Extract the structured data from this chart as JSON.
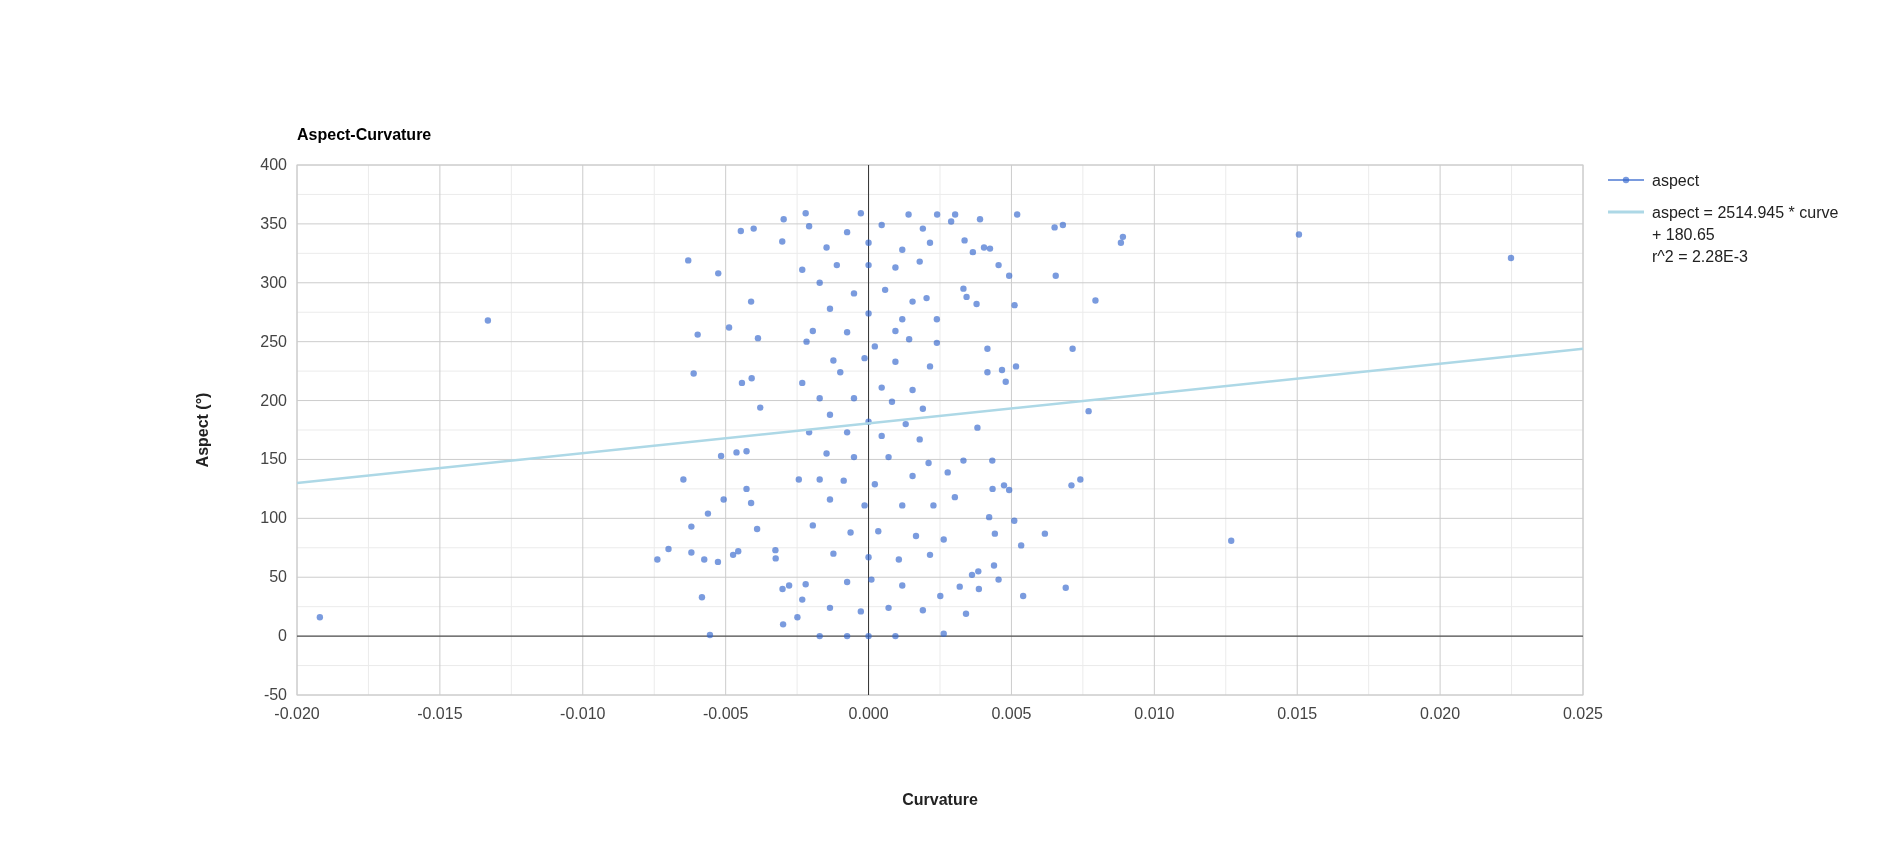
{
  "chart_data": {
    "type": "scatter",
    "title": "Aspect-Curvature",
    "xlabel": "Curvature",
    "ylabel": "Aspect (°)",
    "xlim": [
      -0.02,
      0.025
    ],
    "xticks": [
      {
        "value": -0.02,
        "label": "-0.020"
      },
      {
        "value": -0.015,
        "label": "-0.015"
      },
      {
        "value": -0.01,
        "label": "-0.010"
      },
      {
        "value": -0.005,
        "label": "-0.005"
      },
      {
        "value": 0,
        "label": "0.000"
      },
      {
        "value": 0.005,
        "label": "0.005"
      },
      {
        "value": 0.01,
        "label": "0.010"
      },
      {
        "value": 0.015,
        "label": "0.015"
      },
      {
        "value": 0.02,
        "label": "0.020"
      },
      {
        "value": 0.025,
        "label": "0.025"
      }
    ],
    "ylim": [
      -50,
      400
    ],
    "yticks": [
      -50,
      0,
      50,
      100,
      150,
      200,
      250,
      300,
      350,
      400
    ],
    "grid": true,
    "legend": "right",
    "marker": "circle",
    "series": [
      {
        "name": "aspect",
        "color": "#3366cc",
        "x": [
          -0.0192,
          -0.01332,
          -0.00739,
          -0.007,
          0.00651,
          0.0068,
          0.00655,
          0.00794,
          0.00714,
          0.00883,
          0.0089,
          0.01506,
          0.02248,
          0.0077,
          0.0071,
          0.00741,
          0.01269,
          0.0069,
          -0.00631,
          -0.00526,
          -0.00598,
          -0.00612,
          -0.00648,
          -0.0062,
          -0.00575,
          -0.00527,
          -0.00555,
          -0.00583,
          -0.0062,
          -0.00562,
          -0.00507,
          -0.00488,
          -0.00447,
          -0.00402,
          -0.00411,
          -0.00443,
          -0.00409,
          -0.00379,
          -0.00387,
          -0.00516,
          -0.00462,
          -0.00427,
          -0.00427,
          -0.00411,
          -0.0039,
          -0.00474,
          -0.00456,
          -0.00326,
          -0.00325,
          -0.00301,
          -0.00278,
          -0.00299,
          -0.00297,
          -0.00302,
          0.0052,
          0.00511,
          0.00492,
          0.00455,
          0.00467,
          0.0048,
          0.00516,
          0.00416,
          0.0039,
          0.00425,
          0.00404,
          0.00365,
          0.00336,
          0.00378,
          0.00343,
          0.00416,
          0.00381,
          0.00332,
          0.00433,
          0.00434,
          0.00474,
          0.00492,
          0.0051,
          0.00422,
          0.00617,
          0.00534,
          0.00442,
          0.00439,
          0.00455,
          0.00384,
          0.00362,
          0.00386,
          0.00541,
          0.00341,
          0.00319,
          0.00302,
          0.00277,
          0.00332,
          0.00303,
          0.00289,
          -0.0022,
          -0.00027,
          0.0014,
          0.0024,
          -0.00208,
          -0.00075,
          0.00046,
          0.0019,
          -0.00147,
          0,
          0.00118,
          0.00215,
          -0.00111,
          0,
          0.00094,
          0.00179,
          -0.00232,
          -0.00171,
          -0.00051,
          0.00058,
          0.00154,
          0.00203,
          -0.00135,
          0,
          0.00118,
          0.00239,
          -0.00195,
          -0.00075,
          0.00094,
          -0.00217,
          0.00022,
          0.00142,
          0.00239,
          -0.00123,
          -0.00014,
          0.00094,
          0.00215,
          -0.00232,
          -0.00099,
          0.00046,
          0.00154,
          -0.00171,
          -0.00051,
          0.00082,
          0.0019,
          -0.00135,
          0,
          0.0013,
          -0.00075,
          0.00046,
          0.00179,
          -0.00208,
          -0.00147,
          -0.00051,
          0.0007,
          0.0021,
          -0.00171,
          -0.00087,
          0.00022,
          0.00154,
          -0.00244,
          -0.00135,
          -0.00014,
          0.00118,
          0.00227,
          -0.00195,
          -0.00063,
          0.00034,
          0.00166,
          0.00263,
          -0.00123,
          0,
          0.00106,
          0.00215,
          -0.0022,
          -0.00075,
          0.0001,
          0.00118,
          0.00251,
          -0.00135,
          -0.00027,
          0.0007,
          0.0019,
          -0.00171,
          -0.00075,
          0,
          0.00094,
          0.00263,
          -0.00249,
          -0.00232
        ],
        "values": [
          16,
          268,
          65,
          74,
          347,
          349,
          306,
          285,
          244,
          334,
          339,
          341,
          321,
          191,
          128,
          133,
          81,
          41,
          319,
          308,
          256,
          223,
          133,
          93,
          65,
          63,
          1,
          33,
          71,
          104,
          116,
          262,
          344,
          346,
          284,
          215,
          219,
          194,
          253,
          153,
          156,
          157,
          125,
          113,
          91,
          69,
          72,
          73,
          66,
          40,
          43,
          10,
          354,
          335,
          358,
          281,
          306,
          315,
          226,
          216,
          229,
          244,
          354,
          329,
          330,
          326,
          336,
          282,
          288,
          224,
          177,
          149,
          149,
          125,
          128,
          124,
          98,
          101,
          87,
          77,
          87,
          60,
          48,
          55,
          52,
          40,
          34,
          19,
          42,
          118,
          139,
          295,
          358,
          352,
          359,
          359,
          358,
          358,
          348,
          343,
          349,
          346,
          330,
          334,
          328,
          334,
          315,
          315,
          313,
          318,
          311,
          300,
          291,
          294,
          284,
          287,
          278,
          274,
          269,
          269,
          259,
          258,
          259,
          250,
          246,
          252,
          249,
          234,
          236,
          233,
          229,
          215,
          224,
          211,
          209,
          202,
          202,
          199,
          193,
          188,
          182,
          180,
          173,
          170,
          167,
          173,
          155,
          152,
          152,
          147,
          133,
          132,
          129,
          136,
          133,
          116,
          111,
          111,
          111,
          94,
          88,
          89,
          85,
          82,
          70,
          67,
          65,
          69,
          44,
          46,
          48,
          43,
          34,
          24,
          21,
          24,
          22,
          0,
          0,
          0,
          0,
          2,
          16,
          31
        ]
      },
      {
        "name": "aspect = 2514.945 * curve + 180.65\nr^2 = 2.28E-3",
        "type": "line",
        "marker": "none",
        "color": "#add8e6",
        "x": [
          -0.02,
          0.025
        ],
        "values": [
          130,
          244
        ]
      }
    ]
  }
}
